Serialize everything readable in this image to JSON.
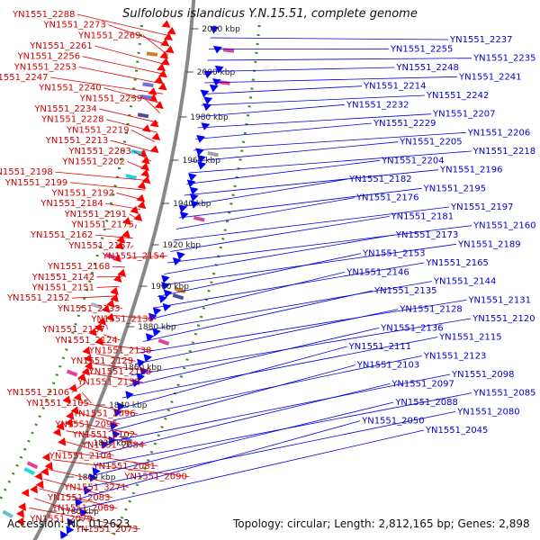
{
  "title": "Sulfolobus islandicus Y.N.15.51, complete genome",
  "footer": {
    "accession": "Accession: NC_012623",
    "topology": "Topology: circular; Length: 2,812,165 bp; Genes: 2,898"
  },
  "colors": {
    "forward": "#ff0000",
    "reverse": "#0000ff",
    "backbone": "#888888",
    "gc_dots": "#3a8a22"
  },
  "ticks": [
    "2020 kbp",
    "2000 kbp",
    "1980 kbp",
    "1960 kbp",
    "1940 kbp",
    "1920 kbp",
    "1900 kbp",
    "1880 kbp",
    "1860 kbp",
    "1840 kbp",
    "1820 kbp",
    "1800 kbp",
    "1780 kbp"
  ],
  "left_labels": [
    "YN1551_2288",
    "YN1551_2273",
    "YN1551_2269",
    "YN1551_2261",
    "YN1551_2256",
    "YN1551_2253",
    "YN1551_2247",
    "YN1551_2240",
    "YN1551_2239",
    "YN1551_2234",
    "YN1551_2228",
    "YN1551_2219",
    "YN1551_2213",
    "YN1551_2203",
    "YN1551_2202",
    "YN1551_2198",
    "YN1551_2199",
    "YN1551_2192",
    "YN1551_2184",
    "YN1551_2191",
    "YN1551_2175",
    "YN1551_2162",
    "YN1551_2167",
    "YN1551_2154",
    "YN1551_2168",
    "YN1551_2142",
    "YN1551_2151",
    "YN1551_2152",
    "YN1551_2133",
    "YN1551_2130",
    "YN1551_2137",
    "YN1551_2124",
    "YN1551_2138",
    "YN1551_2129",
    "YN1551_2118",
    "YN1551_2132",
    "YN1551_2106",
    "YN1551_2105",
    "YN1551_2096",
    "YN1551_2095",
    "YN1551_2102",
    "YN1551_2084",
    "YN1551_2104",
    "YN1551_2081",
    "YN1551_2090",
    "YN1551_3271",
    "YN1551_2083",
    "YN1551_2069",
    "YN1551_2079",
    "YN1551_2073"
  ],
  "right_labels": [
    "YN1551_2237",
    "YN1551_2255",
    "YN1551_2235",
    "YN1551_2248",
    "YN1551_2241",
    "YN1551_2214",
    "YN1551_2242",
    "YN1551_2232",
    "YN1551_2207",
    "YN1551_2229",
    "YN1551_2206",
    "YN1551_2205",
    "YN1551_2218",
    "YN1551_2204",
    "YN1551_2196",
    "YN1551_2182",
    "YN1551_2195",
    "YN1551_2176",
    "YN1551_2197",
    "YN1551_2181",
    "YN1551_2160",
    "YN1551_2173",
    "YN1551_2189",
    "YN1551_2153",
    "YN1551_2165",
    "YN1551_2146",
    "YN1551_2144",
    "YN1551_2135",
    "YN1551_2131",
    "YN1551_2128",
    "YN1551_2120",
    "YN1551_2136",
    "YN1551_2115",
    "YN1551_2111",
    "YN1551_2123",
    "YN1551_2103",
    "YN1551_2098",
    "YN1551_2097",
    "YN1551_2085",
    "YN1551_2088",
    "YN1551_2080",
    "YN1551_2050",
    "YN1551_2045"
  ]
}
